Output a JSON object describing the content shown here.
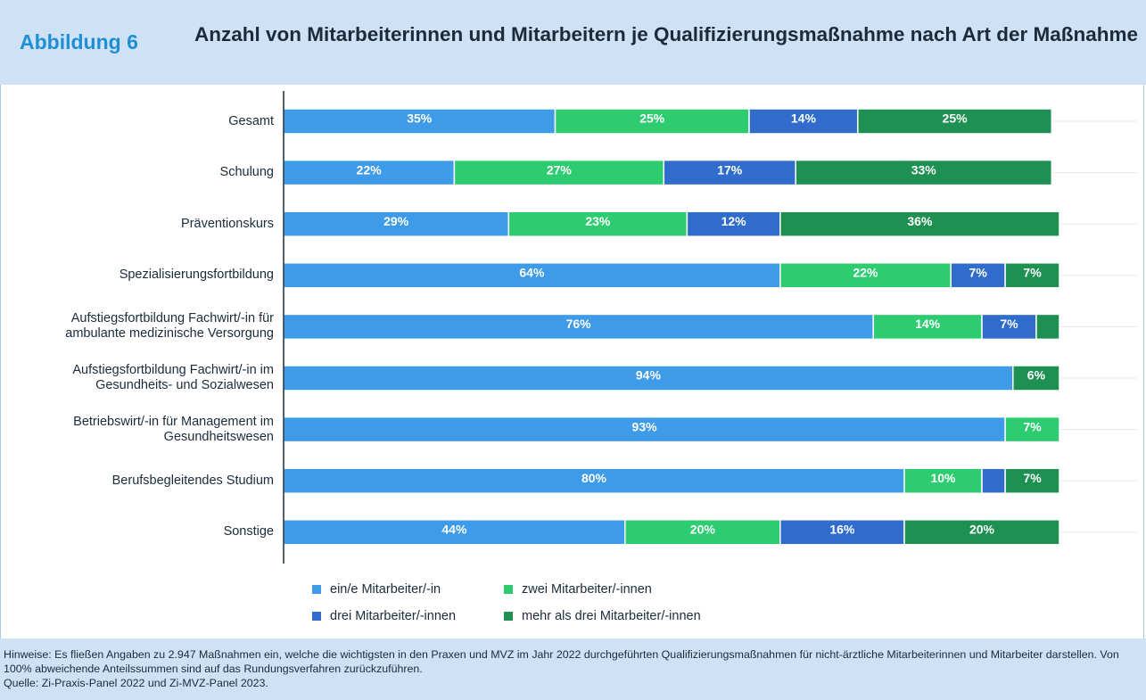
{
  "figure_label": "Abbildung 6",
  "notes": "Hinweise: Es fließen Angaben zu 2.947 Maßnahmen ein, welche die wichtigsten in den Praxen und MVZ im Jahr 2022 durchgeführten Qualifizierungsmaßnahmen für nicht-ärztliche Mitarbeiterinnen und Mitarbeiter darstellen. Von 100% abweichende Anteilssummen sind auf das Rundungsverfahren zurückzuführen.",
  "source": "Quelle: Zi-Praxis-Panel 2022 und Zi-MVZ-Panel 2023.",
  "chart_data": {
    "type": "stacked_barh",
    "title": "Anzahl von Mitarbeiterinnen und Mitarbeitern je Qualifizierungsmaßnahme nach Art der Maßnahme",
    "categories": [
      "Gesamt",
      "Schulung",
      "Präventionskurs",
      "Spezialisierungsfortbildung",
      "Aufstiegsfortbildung Fachwirt/-in für\nambulante medizinische Versorgung",
      "Aufstiegsfortbildung Fachwirt/-in im\nGesundheits- und Sozialwesen",
      "Betriebswirt/-in für Management im\nGesundheitswesen",
      "Berufsbegleitendes Studium",
      "Sonstige"
    ],
    "xlim": [
      0,
      100
    ],
    "series": [
      {
        "name": "ein/e Mitarbeiter/-in",
        "color": "#3d9be9",
        "values": [
          35,
          22,
          29,
          64,
          76,
          94,
          93,
          80,
          44
        ],
        "value_labels": [
          "35%",
          "22%",
          "29%",
          "64%",
          "76%",
          "94%",
          "93%",
          "80%",
          "44%"
        ]
      },
      {
        "name": "zwei Mitarbeiter/-innen",
        "color": "#2ecc71",
        "values": [
          25,
          27,
          23,
          22,
          14,
          0,
          7,
          10,
          20
        ],
        "value_labels": [
          "25%",
          "27%",
          "23%",
          "22%",
          "14%",
          null,
          "7%",
          "10%",
          "20%"
        ]
      },
      {
        "name": "drei Mitarbeiter/-innen",
        "color": "#2f6ccb",
        "values": [
          14,
          17,
          12,
          7,
          7,
          0,
          0,
          3,
          16
        ],
        "value_labels": [
          "14%",
          "17%",
          "12%",
          "7%",
          "7%",
          null,
          null,
          null,
          "16%"
        ]
      },
      {
        "name": "mehr als drei Mitarbeiter/-innen",
        "color": "#1e9152",
        "values": [
          25,
          33,
          36,
          7,
          3,
          6,
          0,
          7,
          20
        ],
        "value_labels": [
          "25%",
          "33%",
          "36%",
          "7%",
          null,
          "6%",
          null,
          "7%",
          "20%"
        ]
      }
    ]
  }
}
